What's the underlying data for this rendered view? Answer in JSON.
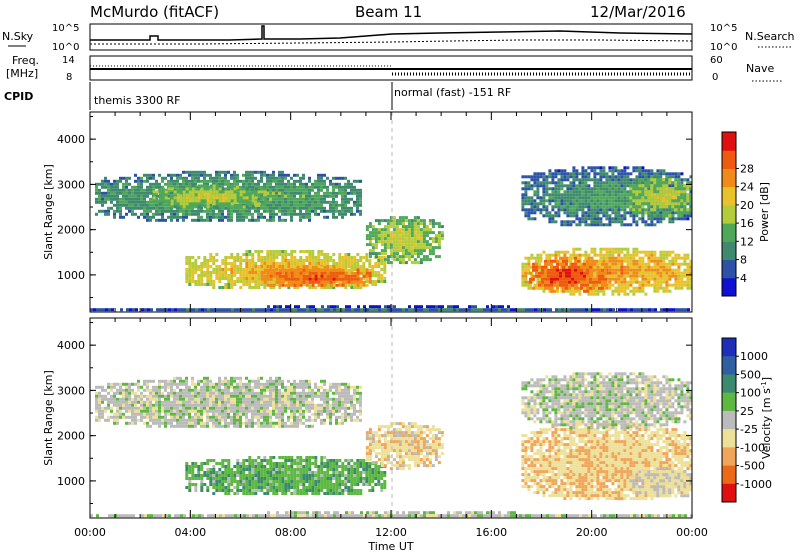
{
  "header": {
    "station": "McMurdo (fitACF)",
    "beam": "Beam 11",
    "date": "12/Mar/2016"
  },
  "sky_panel": {
    "left_label": "N.Sky",
    "right_label": "N.Search",
    "left_ticks": [
      "10^5",
      "10^0"
    ],
    "right_ticks": [
      "10^5",
      "10^0"
    ]
  },
  "freq_panel": {
    "left_label_1": "Freq.",
    "left_label_2": "[MHz]",
    "right_label": "Nave",
    "left_ticks": [
      "14",
      "8"
    ],
    "right_ticks": [
      "60",
      "0"
    ]
  },
  "cpid": {
    "label": "CPID",
    "segments": [
      {
        "start_hour": 0,
        "text": "themis 3300 RF"
      },
      {
        "start_hour": 12,
        "text": "normal (fast) -151 RF"
      }
    ]
  },
  "time_axis": {
    "label": "Time UT",
    "ticks": [
      "00:00",
      "04:00",
      "08:00",
      "12:00",
      "16:00",
      "20:00",
      "00:00"
    ]
  },
  "colors": {
    "power": [
      "#1010d0",
      "#2c52a8",
      "#3f8a6e",
      "#4fa85a",
      "#b4cc3a",
      "#e8c22a",
      "#f08a18",
      "#ef5a10",
      "#e01010"
    ],
    "velocity": [
      "#1c2fb8",
      "#2d5fa2",
      "#3b8a70",
      "#5cb840",
      "#bbbbbb",
      "#ede19a",
      "#f0a65a",
      "#eb6a18",
      "#df1010"
    ]
  },
  "chart_data": [
    {
      "type": "heatmap",
      "name": "power",
      "ylabel": "Slant Range [km]",
      "colorbar_label": "Power [dB]",
      "colorbar_ticks": [
        "4",
        "8",
        "12",
        "16",
        "20",
        "24",
        "28"
      ],
      "x_range_hours": [
        0,
        24
      ],
      "ylim": [
        180,
        4600
      ],
      "yticks": [
        "1000",
        "2000",
        "3000",
        "4000"
      ],
      "scale_range": [
        0,
        32
      ],
      "regions": [
        {
          "t0": 0.2,
          "t1": 10.8,
          "r0": 2200,
          "r1": 3300,
          "v": 14
        },
        {
          "t0": 2.5,
          "t1": 7.0,
          "r0": 2500,
          "r1": 3000,
          "v": 18
        },
        {
          "t0": 3.8,
          "t1": 11.8,
          "r0": 700,
          "r1": 1550,
          "v": 22
        },
        {
          "t0": 6.8,
          "t1": 11.2,
          "r0": 750,
          "r1": 1200,
          "v": 28
        },
        {
          "t0": 11.0,
          "t1": 14.0,
          "r0": 1300,
          "r1": 2300,
          "v": 18
        },
        {
          "t0": 17.2,
          "t1": 24,
          "r0": 600,
          "r1": 1600,
          "v": 24
        },
        {
          "t0": 17.5,
          "t1": 20.5,
          "r0": 650,
          "r1": 1400,
          "v": 29
        },
        {
          "t0": 17.2,
          "t1": 24,
          "r0": 2100,
          "r1": 3400,
          "v": 12
        },
        {
          "t0": 21.5,
          "t1": 24,
          "r0": 2300,
          "r1": 3200,
          "v": 18
        },
        {
          "t0": 0,
          "t1": 24,
          "r0": 200,
          "r1": 330,
          "v": 8
        }
      ]
    },
    {
      "type": "heatmap",
      "name": "velocity",
      "ylabel": "Slant Range [km]",
      "colorbar_label": "Velocity [m s^-1]",
      "colorbar_ticks": [
        "1000",
        "500",
        "100",
        "25",
        "-25",
        "-100",
        "-500",
        "-1000"
      ],
      "x_range_hours": [
        0,
        24
      ],
      "ylim": [
        180,
        4600
      ],
      "yticks": [
        "1000",
        "2000",
        "3000",
        "4000"
      ],
      "scale_range": [
        1200,
        -1200
      ],
      "regions": [
        {
          "t0": 0.2,
          "t1": 10.8,
          "r0": 2200,
          "r1": 3300,
          "v": 0
        },
        {
          "t0": 3.8,
          "t1": 11.8,
          "r0": 700,
          "r1": 1550,
          "v": 300
        },
        {
          "t0": 11.0,
          "t1": 14.0,
          "r0": 1300,
          "r1": 2300,
          "v": -300
        },
        {
          "t0": 17.2,
          "t1": 24,
          "r0": 600,
          "r1": 2300,
          "v": -350
        },
        {
          "t0": 21.5,
          "t1": 24,
          "r0": 650,
          "r1": 1300,
          "v": -150
        },
        {
          "t0": 17.2,
          "t1": 24,
          "r0": 2200,
          "r1": 3400,
          "v": 0
        },
        {
          "t0": 0,
          "t1": 24,
          "r0": 200,
          "r1": 330,
          "v": 0
        }
      ]
    }
  ]
}
